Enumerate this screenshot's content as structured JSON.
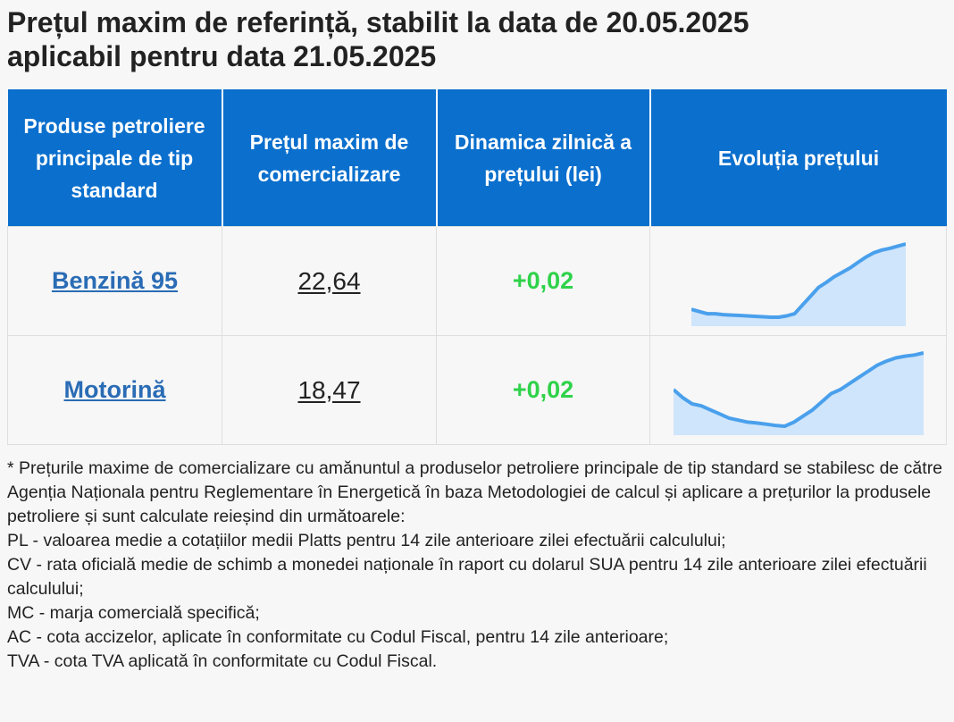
{
  "title": {
    "line1": "Prețul maxim de referință, stabilit la data de 20.05.2025",
    "line2": "aplicabil pentru data 21.05.2025"
  },
  "table": {
    "headers": [
      "Produse petroliere principale de tip standard",
      "Prețul maxim de comercializare",
      "Dinamica zilnică a prețului (lei)",
      "Evoluția prețului"
    ],
    "rows": [
      {
        "product": "Benzină 95",
        "price": "22,64",
        "dynamics": "+0,02",
        "trend": [
          3.2,
          3.15,
          3.1,
          3.1,
          3.08,
          3.07,
          3.06,
          3.05,
          3.04,
          3.03,
          3.02,
          3.02,
          3.05,
          3.1,
          3.3,
          3.5,
          3.7,
          3.82,
          3.95,
          4.05,
          4.15,
          4.28,
          4.4,
          4.5,
          4.56,
          4.6,
          4.65,
          4.7
        ]
      },
      {
        "product": "Motorină",
        "price": "18,47",
        "dynamics": "+0,02",
        "trend": [
          4.0,
          3.8,
          3.65,
          3.6,
          3.5,
          3.4,
          3.3,
          3.25,
          3.2,
          3.18,
          3.15,
          3.12,
          3.1,
          3.2,
          3.35,
          3.5,
          3.7,
          3.9,
          4.0,
          4.15,
          4.3,
          4.45,
          4.6,
          4.7,
          4.78,
          4.82,
          4.85,
          4.9
        ]
      }
    ],
    "trend_color": "#4aa0ec",
    "trend_fill": "#cfe5fb"
  },
  "notes": [
    "* Prețurile maxime de comercializare cu amănuntul a produselor petroliere principale de tip standard se stabilesc de către Agenția Naționala pentru Reglementare în Energetică în baza Metodologiei de calcul și aplicare a prețurilor la produsele petroliere și sunt calculate reieșind din următoarele:",
    "PL - valoarea medie a cotațiilor medii Platts pentru 14 zile anterioare zilei efectuării calculului;",
    "CV - rata oficială medie de schimb a monedei naționale în raport cu dolarul SUA pentru 14 zile anterioare zilei efectuării calculului;",
    "MC - marja comercială specifică;",
    "AC - cota accizelor, aplicate în conformitate cu Codul Fiscal, pentru 14 zile anterioare;",
    "TVA - cota TVA aplicată în conformitate cu Codul Fiscal."
  ]
}
